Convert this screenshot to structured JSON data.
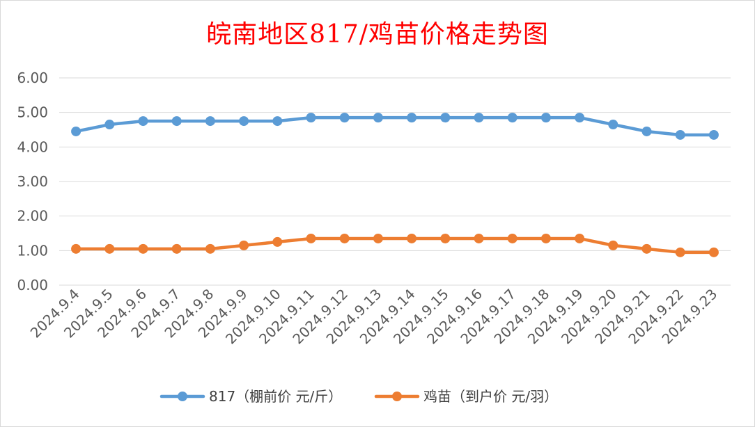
{
  "chart_data": {
    "type": "line",
    "title": "皖南地区817/鸡苗价格走势图",
    "xlabel": "",
    "ylabel": "",
    "categories": [
      "2024.9.4",
      "2024.9.5",
      "2024.9.6",
      "2024.9.7",
      "2024.9.8",
      "2024.9.9",
      "2024.9.10",
      "2024.9.11",
      "2024.9.12",
      "2024.9.13",
      "2024.9.14",
      "2024.9.15",
      "2024.9.16",
      "2024.9.17",
      "2024.9.18",
      "2024.9.19",
      "2024.9.20",
      "2024.9.21",
      "2024.9.22",
      "2024.9.23"
    ],
    "yticks": [
      "0.00",
      "1.00",
      "2.00",
      "3.00",
      "4.00",
      "5.00",
      "6.00"
    ],
    "ylim": [
      0,
      6
    ],
    "grid": true,
    "legend_position": "bottom",
    "series": [
      {
        "name": "817（棚前价 元/斤）",
        "color": "#5b9bd5",
        "values": [
          4.45,
          4.65,
          4.75,
          4.75,
          4.75,
          4.75,
          4.75,
          4.85,
          4.85,
          4.85,
          4.85,
          4.85,
          4.85,
          4.85,
          4.85,
          4.85,
          4.65,
          4.45,
          4.35,
          4.35
        ]
      },
      {
        "name": "鸡苗（到户价 元/羽）",
        "color": "#ed7d31",
        "values": [
          1.05,
          1.05,
          1.05,
          1.05,
          1.05,
          1.15,
          1.25,
          1.35,
          1.35,
          1.35,
          1.35,
          1.35,
          1.35,
          1.35,
          1.35,
          1.35,
          1.15,
          1.05,
          0.95,
          0.95
        ]
      }
    ]
  }
}
